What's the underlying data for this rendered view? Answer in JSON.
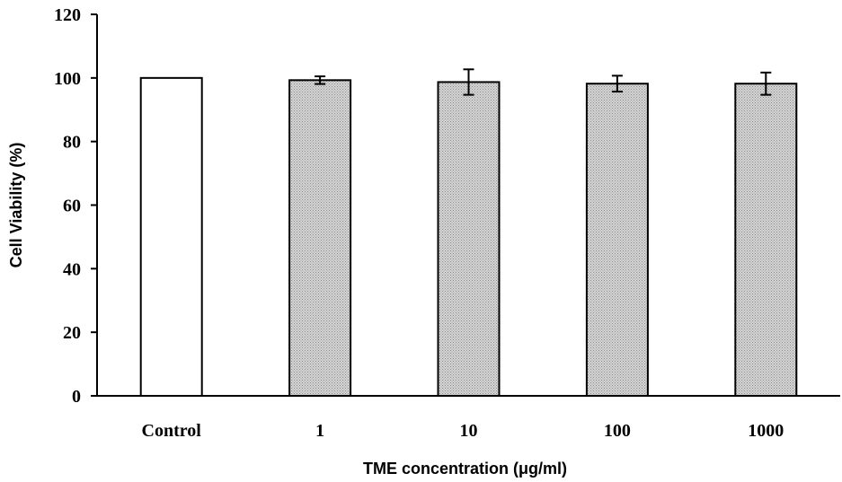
{
  "chart_data": {
    "type": "bar",
    "title": "",
    "xlabel": "TME concentration (μg/ml)",
    "ylabel": "Cell Viability (%)",
    "ylim": [
      0,
      120
    ],
    "yticks": [
      0,
      20,
      40,
      60,
      80,
      100,
      120
    ],
    "categories": [
      "Control",
      "1",
      "10",
      "100",
      "1000"
    ],
    "values": [
      100,
      99.3,
      98.7,
      98.2,
      98.2
    ],
    "errors": [
      0,
      1.2,
      4.0,
      2.5,
      3.5
    ],
    "bar_fills": [
      "#ffffff",
      "#c8c8c8",
      "#c8c8c8",
      "#c8c8c8",
      "#c8c8c8"
    ],
    "grid": false,
    "legend": "none"
  }
}
